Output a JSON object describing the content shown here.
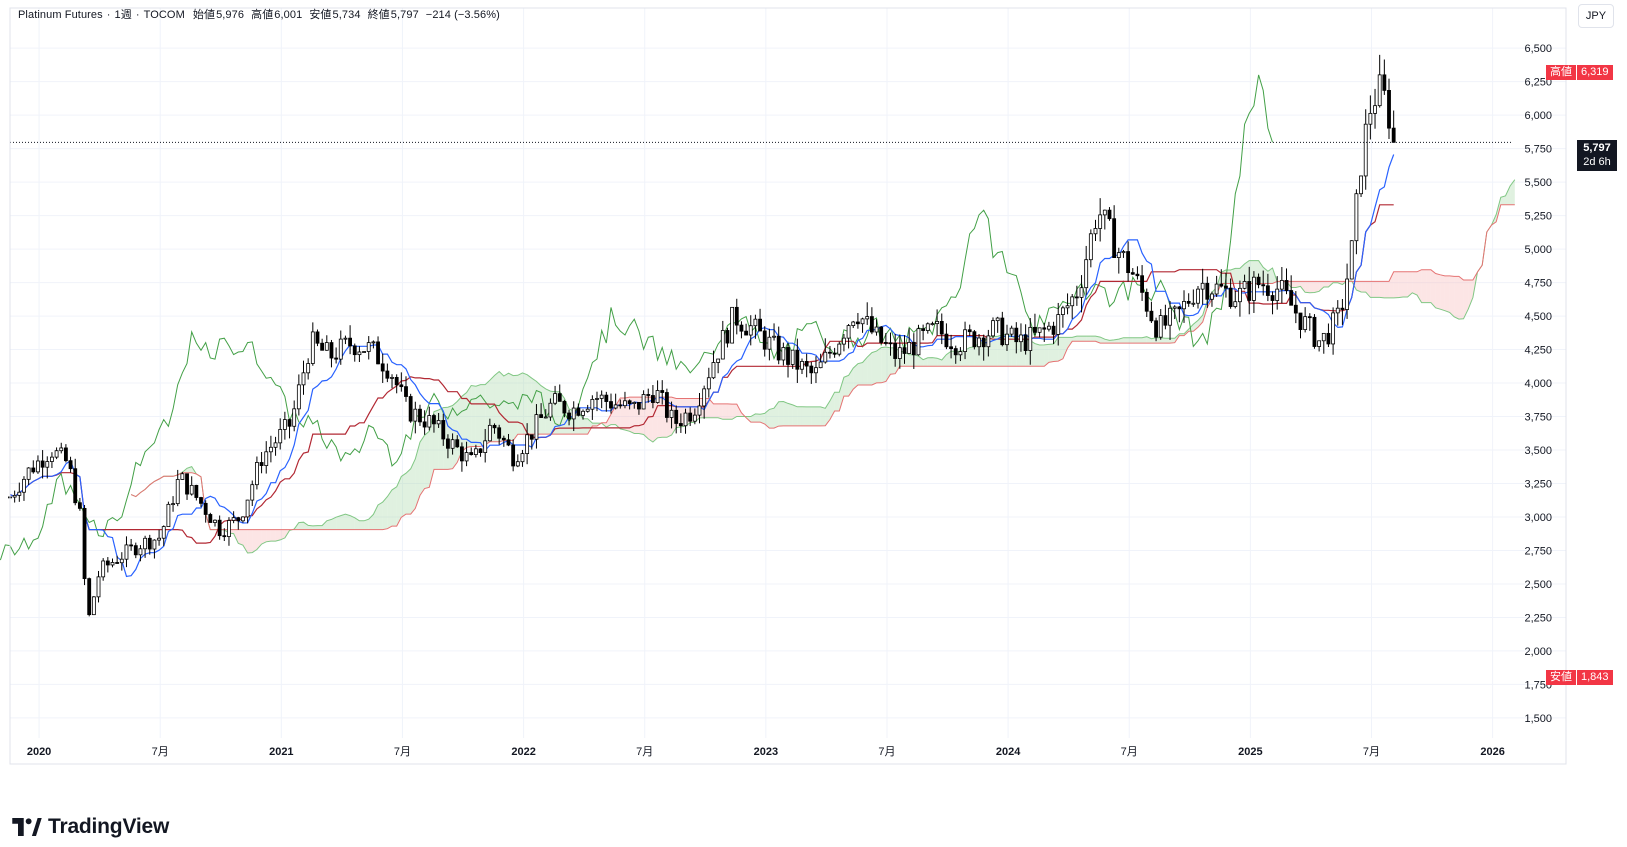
{
  "legend": {
    "symbol": "Platinum Futures",
    "interval": "1週",
    "exchange": "TOCOM",
    "open_label": "始値",
    "open": "5,976",
    "high_label": "高値",
    "high": "6,001",
    "low_label": "安値",
    "low": "5,734",
    "close_label": "終値",
    "close": "5,797",
    "change": "−214 (−3.56%)"
  },
  "currency_button": "JPY",
  "badges": {
    "high_label": "高値",
    "high_value": "6,319",
    "low_label": "安値",
    "low_value": "1,843",
    "last_value": "5,797",
    "last_countdown": "2d 6h"
  },
  "logo_text": "TradingView",
  "colors": {
    "up_candle": "#ffffff",
    "down_candle": "#000000",
    "wick": "#000000",
    "tenkan": "#2962ff",
    "kijun": "#b22833",
    "chikou": "#43a047",
    "cloud_bull": "#a5d6a7",
    "cloud_bear": "#f7b5b5",
    "badge_red": "#f23645"
  },
  "chart_data": {
    "type": "candlestick",
    "title": "Platinum Futures · 1週 · TOCOM",
    "indicator": "Ichimoku",
    "x_ticks": [
      {
        "label": "2020",
        "t": 2020.0
      },
      {
        "label": "7月",
        "t": 2020.5
      },
      {
        "label": "2021",
        "t": 2021.0
      },
      {
        "label": "7月",
        "t": 2021.5
      },
      {
        "label": "2022",
        "t": 2022.0
      },
      {
        "label": "7月",
        "t": 2022.5
      },
      {
        "label": "2023",
        "t": 2023.0
      },
      {
        "label": "7月",
        "t": 2023.5
      },
      {
        "label": "2024",
        "t": 2024.0
      },
      {
        "label": "7月",
        "t": 2024.5
      },
      {
        "label": "2025",
        "t": 2025.0
      },
      {
        "label": "7月",
        "t": 2025.5
      },
      {
        "label": "2026",
        "t": 2026.0
      }
    ],
    "y_ticks": [
      {
        "label": "6,500",
        "v": 6500
      },
      {
        "label": "6,250",
        "v": 6250
      },
      {
        "label": "6,000",
        "v": 6000
      },
      {
        "label": "5,750",
        "v": 5750
      },
      {
        "label": "5,500",
        "v": 5500
      },
      {
        "label": "5,250",
        "v": 5250
      },
      {
        "label": "5,000",
        "v": 5000
      },
      {
        "label": "4,750",
        "v": 4750
      },
      {
        "label": "4,500",
        "v": 4500
      },
      {
        "label": "4,250",
        "v": 4250
      },
      {
        "label": "4,000",
        "v": 4000
      },
      {
        "label": "3,750",
        "v": 3750
      },
      {
        "label": "3,500",
        "v": 3500
      },
      {
        "label": "3,250",
        "v": 3250
      },
      {
        "label": "3,000",
        "v": 3000
      },
      {
        "label": "2,750",
        "v": 2750
      },
      {
        "label": "2,500",
        "v": 2500
      },
      {
        "label": "2,250",
        "v": 2250
      },
      {
        "label": "2,000",
        "v": 2000
      },
      {
        "label": "1,750",
        "v": 1750
      },
      {
        "label": "1,500",
        "v": 1500
      }
    ],
    "xlim": [
      2019.88,
      2026.08
    ],
    "ylim": [
      1350,
      6800
    ],
    "last_close": 5797,
    "period_high": 6319,
    "period_low": 1843,
    "closes": [
      {
        "t": 2019.88,
        "v": 3150
      },
      {
        "t": 2019.96,
        "v": 3350
      },
      {
        "t": 2020.05,
        "v": 3500
      },
      {
        "t": 2020.12,
        "v": 3400
      },
      {
        "t": 2020.17,
        "v": 3000
      },
      {
        "t": 2020.2,
        "v": 2200
      },
      {
        "t": 2020.25,
        "v": 2600
      },
      {
        "t": 2020.33,
        "v": 2700
      },
      {
        "t": 2020.42,
        "v": 2800
      },
      {
        "t": 2020.5,
        "v": 2850
      },
      {
        "t": 2020.58,
        "v": 3300
      },
      {
        "t": 2020.67,
        "v": 3100
      },
      {
        "t": 2020.75,
        "v": 2900
      },
      {
        "t": 2020.83,
        "v": 3000
      },
      {
        "t": 2020.92,
        "v": 3450
      },
      {
        "t": 2021.04,
        "v": 3700
      },
      {
        "t": 2021.12,
        "v": 4300
      },
      {
        "t": 2021.2,
        "v": 4200
      },
      {
        "t": 2021.29,
        "v": 4300
      },
      {
        "t": 2021.37,
        "v": 4250
      },
      {
        "t": 2021.45,
        "v": 4100
      },
      {
        "t": 2021.52,
        "v": 3800
      },
      {
        "t": 2021.62,
        "v": 3700
      },
      {
        "t": 2021.7,
        "v": 3550
      },
      {
        "t": 2021.79,
        "v": 3400
      },
      {
        "t": 2021.87,
        "v": 3700
      },
      {
        "t": 2021.96,
        "v": 3450
      },
      {
        "t": 2022.04,
        "v": 3650
      },
      {
        "t": 2022.12,
        "v": 3850
      },
      {
        "t": 2022.2,
        "v": 3800
      },
      {
        "t": 2022.29,
        "v": 3900
      },
      {
        "t": 2022.37,
        "v": 3850
      },
      {
        "t": 2022.45,
        "v": 3800
      },
      {
        "t": 2022.54,
        "v": 3950
      },
      {
        "t": 2022.62,
        "v": 3700
      },
      {
        "t": 2022.7,
        "v": 3800
      },
      {
        "t": 2022.79,
        "v": 4200
      },
      {
        "t": 2022.87,
        "v": 4500
      },
      {
        "t": 2022.95,
        "v": 4400
      },
      {
        "t": 2023.04,
        "v": 4250
      },
      {
        "t": 2023.12,
        "v": 4150
      },
      {
        "t": 2023.2,
        "v": 4050
      },
      {
        "t": 2023.29,
        "v": 4300
      },
      {
        "t": 2023.37,
        "v": 4550
      },
      {
        "t": 2023.45,
        "v": 4350
      },
      {
        "t": 2023.54,
        "v": 4200
      },
      {
        "t": 2023.62,
        "v": 4300
      },
      {
        "t": 2023.7,
        "v": 4400
      },
      {
        "t": 2023.79,
        "v": 4300
      },
      {
        "t": 2023.87,
        "v": 4350
      },
      {
        "t": 2023.95,
        "v": 4400
      },
      {
        "t": 2024.04,
        "v": 4300
      },
      {
        "t": 2024.12,
        "v": 4350
      },
      {
        "t": 2024.2,
        "v": 4450
      },
      {
        "t": 2024.29,
        "v": 4700
      },
      {
        "t": 2024.37,
        "v": 5300
      },
      {
        "t": 2024.45,
        "v": 5000
      },
      {
        "t": 2024.52,
        "v": 4800
      },
      {
        "t": 2024.62,
        "v": 4400
      },
      {
        "t": 2024.7,
        "v": 4500
      },
      {
        "t": 2024.79,
        "v": 4750
      },
      {
        "t": 2024.87,
        "v": 4700
      },
      {
        "t": 2024.95,
        "v": 4650
      },
      {
        "t": 2025.04,
        "v": 4750
      },
      {
        "t": 2025.12,
        "v": 4700
      },
      {
        "t": 2025.2,
        "v": 4500
      },
      {
        "t": 2025.29,
        "v": 4300
      },
      {
        "t": 2025.37,
        "v": 4500
      },
      {
        "t": 2025.42,
        "v": 5000
      },
      {
        "t": 2025.46,
        "v": 5700
      },
      {
        "t": 2025.5,
        "v": 6100
      },
      {
        "t": 2025.54,
        "v": 6200
      },
      {
        "t": 2025.58,
        "v": 5950
      },
      {
        "t": 2025.6,
        "v": 5797
      }
    ]
  }
}
